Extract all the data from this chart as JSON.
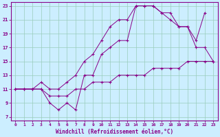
{
  "xlabel": "Windchill (Refroidissement éolien,°C)",
  "bg_color": "#cceeff",
  "line_color": "#880088",
  "grid_color": "#99ccbb",
  "xlim": [
    -0.5,
    23.5
  ],
  "ylim": [
    6.5,
    23.5
  ],
  "xticks": [
    0,
    1,
    2,
    3,
    4,
    5,
    6,
    7,
    8,
    9,
    10,
    11,
    12,
    13,
    14,
    15,
    16,
    17,
    18,
    19,
    20,
    21,
    22,
    23
  ],
  "yticks": [
    7,
    9,
    11,
    13,
    15,
    17,
    19,
    21,
    23
  ],
  "series": [
    {
      "x": [
        0,
        1,
        2,
        3,
        4,
        5,
        6,
        7,
        8,
        9,
        10,
        11,
        12,
        13,
        14,
        15,
        16,
        17,
        18,
        19,
        20,
        21,
        22
      ],
      "y": [
        11,
        11,
        11,
        12,
        11,
        11,
        12,
        13,
        15,
        16,
        18,
        20,
        21,
        21,
        23,
        23,
        23,
        22,
        22,
        20,
        20,
        18,
        22
      ]
    },
    {
      "x": [
        0,
        1,
        2,
        3,
        4,
        5,
        6,
        7,
        8,
        9,
        10,
        11,
        12,
        13,
        14,
        15,
        16,
        17,
        18,
        19,
        20,
        21,
        22,
        23
      ],
      "y": [
        11,
        11,
        11,
        11,
        9,
        8,
        9,
        8,
        13,
        13,
        16,
        17,
        18,
        18,
        23,
        23,
        23,
        22,
        21,
        20,
        20,
        17,
        17,
        15
      ]
    },
    {
      "x": [
        0,
        1,
        2,
        3,
        4,
        5,
        6,
        7,
        8,
        9,
        10,
        11,
        12,
        13,
        14,
        15,
        16,
        17,
        18,
        19,
        20,
        21,
        22,
        23
      ],
      "y": [
        11,
        11,
        11,
        11,
        10,
        10,
        10,
        11,
        11,
        12,
        12,
        12,
        13,
        13,
        13,
        13,
        14,
        14,
        14,
        14,
        15,
        15,
        15,
        15
      ]
    }
  ]
}
